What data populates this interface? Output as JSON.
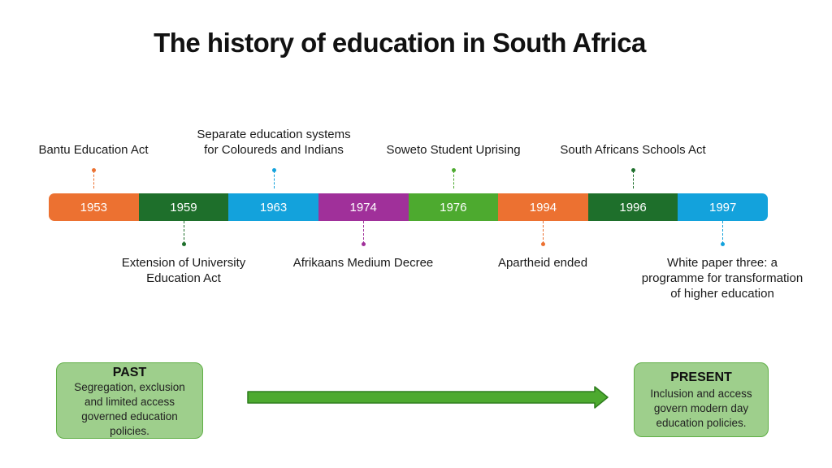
{
  "title": "The history of education in South Africa",
  "timeline": {
    "segments": [
      {
        "year": "1953",
        "color": "#ec7131"
      },
      {
        "year": "1959",
        "color": "#1e6f2b"
      },
      {
        "year": "1963",
        "color": "#13a2dc"
      },
      {
        "year": "1974",
        "color": "#a0309a"
      },
      {
        "year": "1976",
        "color": "#4daa2f"
      },
      {
        "year": "1994",
        "color": "#ec7131"
      },
      {
        "year": "1996",
        "color": "#1e6f2b"
      },
      {
        "year": "1997",
        "color": "#13a2dc"
      }
    ],
    "events": [
      {
        "year": "1953",
        "position": "above",
        "label": "Bantu Education Act"
      },
      {
        "year": "1959",
        "position": "below",
        "label": "Extension of University Education Act"
      },
      {
        "year": "1963",
        "position": "above",
        "label": "Separate education systems for Coloureds and Indians"
      },
      {
        "year": "1974",
        "position": "below",
        "label": "Afrikaans Medium Decree"
      },
      {
        "year": "1976",
        "position": "above",
        "label": "Soweto Student Uprising"
      },
      {
        "year": "1994",
        "position": "below",
        "label": "Apartheid ended"
      },
      {
        "year": "1996",
        "position": "above",
        "label": "South Africans Schools Act"
      },
      {
        "year": "1997",
        "position": "below",
        "label": "White paper three: a programme for transformation of higher education"
      }
    ]
  },
  "past": {
    "heading": "PAST",
    "text": "Segregation, exclusion and limited access governed education policies."
  },
  "present": {
    "heading": "PRESENT",
    "text": "Inclusion and access govern modern day education policies."
  },
  "colors": {
    "box_fill": "#9ecf8c",
    "box_border": "#5fae45",
    "arrow_fill": "#4daa2f",
    "arrow_stroke": "#2e7d1e"
  }
}
